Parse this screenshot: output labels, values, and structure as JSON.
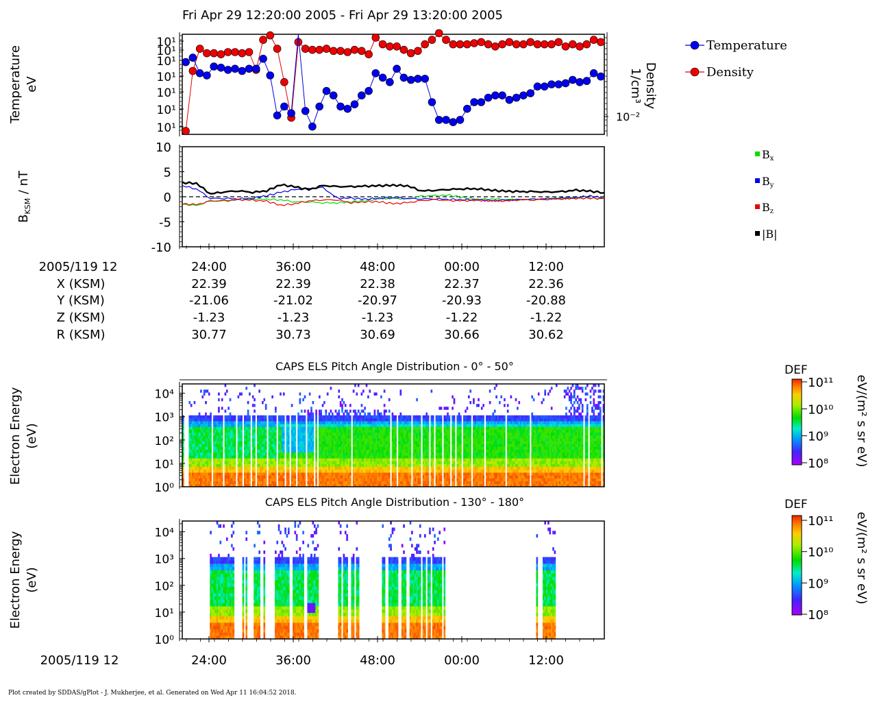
{
  "title": "Fri Apr 29 12:20:00 2005 - Fri Apr 29 13:20:00 2005",
  "footer": "Plot created by SDDAS/gPlot - J. Mukherjee, et al.  Generated on Wed Apr 11 16:04:52 2018.",
  "colors": {
    "temperature": "#0000dd",
    "density": "#dd0000",
    "bx": "#00dd00",
    "by": "#0000ee",
    "bz": "#ee0000",
    "btot": "#000000"
  },
  "chart_data": [
    {
      "type": "scatter",
      "name": "moments-panel",
      "ylabel_lines": [
        "Temperature",
        "eV"
      ],
      "y2label_lines": [
        "Density",
        "1/cm³"
      ],
      "y_tick_labels": [
        "10¹",
        "10¹",
        "10¹",
        "10¹",
        "10¹",
        "10¹",
        "10¹"
      ],
      "y2_tick_labels": [
        "10⁻²"
      ],
      "legend": [
        "Temperature",
        "Density"
      ],
      "x_range_minutes": [
        0,
        60
      ],
      "ylim_log10": [
        1.05,
        1.95
      ],
      "series": [
        {
          "name": "Temperature",
          "x": [
            0.5,
            1.5,
            2.5,
            3.5,
            4.5,
            5.5,
            6.5,
            7.5,
            8.5,
            9.5,
            10.5,
            11.5,
            12.5,
            13.5,
            14.5,
            15.5,
            16.5,
            17.5,
            18.5,
            19.5,
            20.5,
            21.5,
            22.5,
            23.5,
            24.5,
            25.5,
            26.5,
            27.5,
            28.5,
            29.5,
            30.5,
            31.5,
            32.5,
            33.5,
            34.5,
            35.5,
            36.5,
            37.5,
            38.5,
            39.5,
            40.5,
            41.5,
            42.5,
            43.5,
            44.5,
            45.5,
            46.5,
            47.5,
            48.5,
            49.5,
            50.5,
            51.5,
            52.5,
            53.5,
            54.5,
            55.5,
            56.5,
            57.5,
            58.5,
            59.5
          ],
          "y": [
            1.7,
            1.74,
            1.6,
            1.58,
            1.66,
            1.65,
            1.63,
            1.64,
            1.62,
            1.64,
            1.64,
            1.73,
            1.58,
            1.22,
            1.3,
            1.24,
            1.98,
            1.26,
            1.12,
            1.3,
            1.44,
            1.4,
            1.3,
            1.28,
            1.32,
            1.4,
            1.44,
            1.6,
            1.56,
            1.52,
            1.64,
            1.56,
            1.54,
            1.55,
            1.55,
            1.34,
            1.18,
            1.18,
            1.16,
            1.18,
            1.28,
            1.34,
            1.34,
            1.38,
            1.4,
            1.4,
            1.36,
            1.38,
            1.4,
            1.42,
            1.48,
            1.48,
            1.5,
            1.5,
            1.51,
            1.54,
            1.52,
            1.53,
            1.6,
            1.57
          ]
        },
        {
          "name": "Density",
          "x": [
            0.5,
            1.5,
            2.5,
            3.5,
            4.5,
            5.5,
            6.5,
            7.5,
            8.5,
            9.5,
            10.5,
            11.5,
            12.5,
            13.5,
            14.5,
            15.5,
            16.5,
            17.5,
            18.5,
            19.5,
            20.5,
            21.5,
            22.5,
            23.5,
            24.5,
            25.5,
            26.5,
            27.5,
            28.5,
            29.5,
            30.5,
            31.5,
            32.5,
            33.5,
            34.5,
            35.5,
            36.5,
            37.5,
            38.5,
            39.5,
            40.5,
            41.5,
            42.5,
            43.5,
            44.5,
            45.5,
            46.5,
            47.5,
            48.5,
            49.5,
            50.5,
            51.5,
            52.5,
            53.5,
            54.5,
            55.5,
            56.5,
            57.5,
            58.5,
            59.5
          ],
          "y": [
            1.08,
            1.62,
            1.82,
            1.78,
            1.78,
            1.77,
            1.79,
            1.79,
            1.78,
            1.79,
            1.63,
            1.9,
            1.94,
            1.82,
            1.52,
            1.2,
            1.88,
            1.82,
            1.81,
            1.81,
            1.82,
            1.8,
            1.8,
            1.79,
            1.81,
            1.8,
            1.77,
            1.92,
            1.86,
            1.84,
            1.84,
            1.81,
            1.78,
            1.8,
            1.86,
            1.9,
            1.96,
            1.9,
            1.86,
            1.86,
            1.86,
            1.87,
            1.88,
            1.86,
            1.84,
            1.86,
            1.88,
            1.86,
            1.86,
            1.88,
            1.86,
            1.86,
            1.86,
            1.88,
            1.84,
            1.86,
            1.84,
            1.86,
            1.9,
            1.88
          ]
        }
      ]
    },
    {
      "type": "line",
      "name": "magnetic-field-panel",
      "ylabel": "B_KSM / nT",
      "y_tick_labels": [
        "10",
        "5",
        "0",
        "-5",
        "-10"
      ],
      "ylim": [
        -10,
        10
      ],
      "legend": [
        "Bx",
        "By",
        "Bz",
        "|B|"
      ],
      "x_range_minutes": [
        0,
        60
      ],
      "series": [
        {
          "name": "Bx",
          "x": [
            0,
            2,
            4,
            6,
            8,
            10,
            12,
            14,
            16,
            18,
            20,
            22,
            24,
            26,
            28,
            30,
            32,
            34,
            36,
            38,
            40,
            42,
            44,
            46,
            48,
            50,
            52,
            54,
            56,
            58,
            60
          ],
          "y": [
            -1.5,
            -1.8,
            -0.8,
            -0.9,
            -0.6,
            -0.4,
            -0.5,
            -0.6,
            -1.0,
            -1.0,
            -1.2,
            -1.2,
            -1.0,
            -0.8,
            -0.4,
            -0.3,
            -0.5,
            0.1,
            0.2,
            0.3,
            -0.2,
            -0.5,
            -0.4,
            -0.5,
            -0.5,
            -0.6,
            -0.4,
            -0.3,
            -0.2,
            -0.3,
            -0.3
          ]
        },
        {
          "name": "By",
          "x": [
            0,
            2,
            4,
            6,
            8,
            10,
            12,
            14,
            16,
            18,
            20,
            22,
            24,
            26,
            28,
            30,
            32,
            34,
            36,
            38,
            40,
            42,
            44,
            46,
            48,
            50,
            52,
            54,
            56,
            58,
            60
          ],
          "y": [
            2.2,
            1.6,
            -0.3,
            -0.3,
            -0.4,
            -0.3,
            0.2,
            0.9,
            1.4,
            1.6,
            1.8,
            -0.3,
            -0.3,
            -0.5,
            -0.3,
            -0.2,
            -0.3,
            -0.4,
            -0.4,
            -0.5,
            -0.6,
            -0.6,
            -0.8,
            -0.7,
            -0.6,
            -0.5,
            -0.4,
            -0.3,
            -0.2,
            0.2,
            -0.3
          ]
        },
        {
          "name": "Bz",
          "x": [
            0,
            2,
            4,
            6,
            8,
            10,
            12,
            14,
            16,
            18,
            20,
            22,
            24,
            26,
            28,
            30,
            32,
            34,
            36,
            38,
            40,
            42,
            44,
            46,
            48,
            50,
            52,
            54,
            56,
            58,
            60
          ],
          "y": [
            -1.4,
            -1.6,
            -0.9,
            -0.8,
            -0.6,
            -0.7,
            -0.9,
            -1.7,
            -1.4,
            -0.8,
            -0.6,
            -0.6,
            -1.2,
            -1.0,
            -1.0,
            -1.4,
            -1.2,
            -0.8,
            -0.6,
            -0.8,
            -0.8,
            -0.7,
            -0.8,
            -0.8,
            -0.6,
            -0.6,
            -0.5,
            -0.4,
            -0.3,
            -0.3,
            -0.4
          ]
        },
        {
          "name": "|B|",
          "x": [
            0,
            2,
            4,
            6,
            8,
            10,
            12,
            14,
            16,
            18,
            20,
            22,
            24,
            26,
            28,
            30,
            32,
            34,
            36,
            38,
            40,
            42,
            44,
            46,
            48,
            50,
            52,
            54,
            56,
            58,
            60
          ],
          "y": [
            2.8,
            2.7,
            0.6,
            1.0,
            1.2,
            0.9,
            1.2,
            2.4,
            2.0,
            1.4,
            2.2,
            2.0,
            2.0,
            2.1,
            2.2,
            2.3,
            2.2,
            1.2,
            1.3,
            1.5,
            1.6,
            1.6,
            1.3,
            1.1,
            1.0,
            1.0,
            0.9,
            1.0,
            1.3,
            1.1,
            0.8
          ]
        }
      ],
      "x_tick_labels": [
        "24:00",
        "36:00",
        "48:00",
        "00:00",
        "12:00"
      ]
    },
    {
      "type": "table",
      "name": "ephemeris",
      "row_labels": [
        "2005/119 12",
        "X (KSM)",
        "Y (KSM)",
        "Z (KSM)",
        "R (KSM)"
      ],
      "columns": [
        [
          "24:00",
          "22.39",
          "-21.06",
          "-1.23",
          "30.77"
        ],
        [
          "36:00",
          "22.39",
          "-21.02",
          "-1.23",
          "30.73"
        ],
        [
          "48:00",
          "22.38",
          "-20.97",
          "-1.23",
          "30.69"
        ],
        [
          "00:00",
          "22.37",
          "-20.93",
          "-1.22",
          "30.66"
        ],
        [
          "12:00",
          "22.36",
          "-20.88",
          "-1.22",
          "30.62"
        ]
      ]
    },
    {
      "type": "heatmap",
      "name": "pad-0-50",
      "title": "CAPS ELS Pitch Angle Distribution - 0° - 50°",
      "ylabel_lines": [
        "Electron Energy",
        "(eV)"
      ],
      "y_tick_labels": [
        "10⁴",
        "10³",
        "10²",
        "10¹",
        "10⁰"
      ],
      "colorbar_title": "DEF",
      "colorbar_unit": "eV/(m² s sr eV)",
      "colorbar_tick_labels": [
        "10¹¹",
        "10¹⁰",
        "10⁹",
        "10⁸"
      ],
      "log_energy_range": [
        0,
        4.4
      ],
      "log_def_range": [
        8,
        11
      ],
      "gap_columns": [
        1,
        2,
        3,
        18,
        25,
        33,
        37,
        42,
        45,
        52,
        58,
        63,
        66,
        70,
        76,
        81,
        83,
        104,
        128,
        132,
        141,
        147,
        152,
        155,
        160,
        165,
        168,
        172,
        178,
        186,
        199,
        214,
        247,
        250,
        258
      ],
      "rich_columns_start": 60
    },
    {
      "type": "heatmap",
      "name": "pad-130-180",
      "title": "CAPS ELS Pitch Angle Distribution - 130° - 180°",
      "ylabel_lines": [
        "Electron Energy",
        "(eV)"
      ],
      "y_tick_labels": [
        "10⁴",
        "10³",
        "10²",
        "10¹",
        "10⁰"
      ],
      "colorbar_title": "DEF",
      "colorbar_unit": "eV/(m² s sr eV)",
      "colorbar_tick_labels": [
        "10¹¹",
        "10¹⁰",
        "10⁹",
        "10⁸"
      ],
      "log_energy_range": [
        0,
        4.4
      ],
      "log_def_range": [
        8,
        11
      ],
      "data_blocks": [
        [
          17,
          31
        ],
        [
          36,
          39
        ],
        [
          44,
          50
        ],
        [
          57,
          66
        ],
        [
          68,
          83
        ],
        [
          96,
          101
        ],
        [
          104,
          108
        ],
        [
          123,
          132
        ],
        [
          135,
          146
        ],
        [
          148,
          161
        ],
        [
          218,
          229
        ]
      ],
      "x_tick_labels": [
        "24:00",
        "36:00",
        "48:00",
        "00:00",
        "12:00"
      ],
      "x_row_label": "2005/119 12"
    }
  ]
}
